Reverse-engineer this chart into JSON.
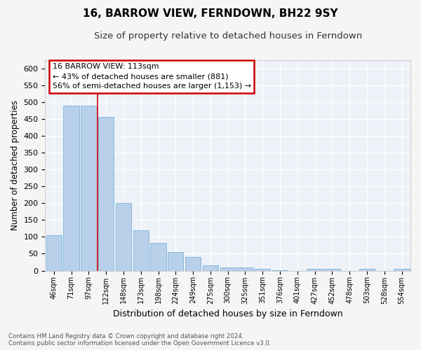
{
  "title": "16, BARROW VIEW, FERNDOWN, BH22 9SY",
  "subtitle": "Size of property relative to detached houses in Ferndown",
  "xlabel": "Distribution of detached houses by size in Ferndown",
  "ylabel": "Number of detached properties",
  "categories": [
    "46sqm",
    "71sqm",
    "97sqm",
    "122sqm",
    "148sqm",
    "173sqm",
    "198sqm",
    "224sqm",
    "249sqm",
    "275sqm",
    "300sqm",
    "325sqm",
    "351sqm",
    "376sqm",
    "401sqm",
    "427sqm",
    "452sqm",
    "478sqm",
    "503sqm",
    "528sqm",
    "554sqm"
  ],
  "values": [
    105,
    490,
    490,
    455,
    200,
    120,
    82,
    55,
    40,
    15,
    10,
    10,
    5,
    2,
    0,
    5,
    5,
    0,
    5,
    0,
    5
  ],
  "bar_color": "#b8d0ea",
  "bar_edge_color": "#6aaad4",
  "red_line_x": 2.5,
  "annotation_text": "16 BARROW VIEW: 113sqm\n← 43% of detached houses are smaller (881)\n56% of semi-detached houses are larger (1,153) →",
  "annotation_box_color": "#ffffff",
  "annotation_box_edge": "#cc0000",
  "annotation_fontsize": 8.0,
  "title_fontsize": 11,
  "subtitle_fontsize": 9.5,
  "xlabel_fontsize": 9,
  "ylabel_fontsize": 8.5,
  "footer_text": "Contains HM Land Registry data © Crown copyright and database right 2024.\nContains public sector information licensed under the Open Government Licence v3.0.",
  "ylim": [
    0,
    625
  ],
  "yticks": [
    0,
    50,
    100,
    150,
    200,
    250,
    300,
    350,
    400,
    450,
    500,
    550,
    600
  ],
  "bg_color": "#eef2f8",
  "grid_color": "#ffffff",
  "fig_bg_color": "#f5f5f5"
}
